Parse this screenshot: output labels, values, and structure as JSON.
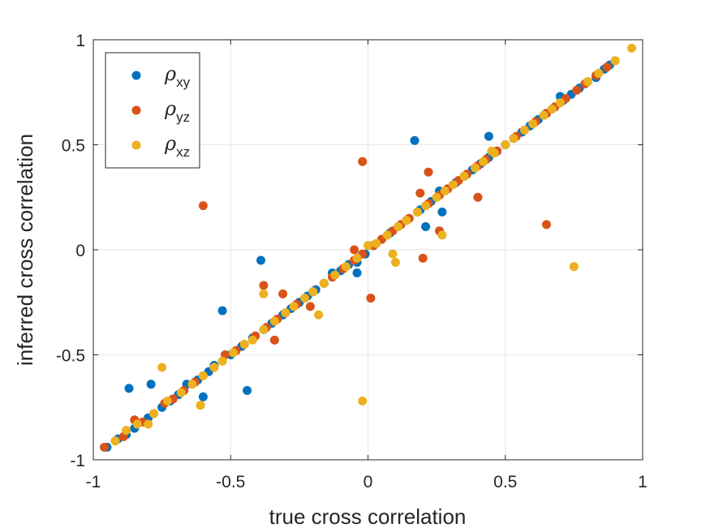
{
  "chart_data": {
    "type": "scatter",
    "title": "",
    "xlabel": "true cross correlation",
    "ylabel": "inferred cross correlation",
    "xlim": [
      -1,
      1
    ],
    "ylim": [
      -1,
      1
    ],
    "xticks": [
      "-1",
      "-0.5",
      "0",
      "0.5",
      "1"
    ],
    "yticks": [
      "-1",
      "-0.5",
      "0",
      "0.5",
      "1"
    ],
    "grid": true,
    "legend_position": "top-left",
    "series": [
      {
        "name": "ρxy",
        "symbol": "ρ",
        "subscript": "xy",
        "color": "#0072BD",
        "points": [
          [
            -0.95,
            -0.94
          ],
          [
            -0.91,
            -0.9
          ],
          [
            -0.88,
            -0.88
          ],
          [
            -0.87,
            -0.66
          ],
          [
            -0.85,
            -0.85
          ],
          [
            -0.8,
            -0.8
          ],
          [
            -0.79,
            -0.64
          ],
          [
            -0.75,
            -0.75
          ],
          [
            -0.72,
            -0.72
          ],
          [
            -0.69,
            -0.69
          ],
          [
            -0.66,
            -0.64
          ],
          [
            -0.62,
            -0.62
          ],
          [
            -0.6,
            -0.7
          ],
          [
            -0.58,
            -0.58
          ],
          [
            -0.56,
            -0.55
          ],
          [
            -0.53,
            -0.29
          ],
          [
            -0.5,
            -0.5
          ],
          [
            -0.46,
            -0.46
          ],
          [
            -0.44,
            -0.67
          ],
          [
            -0.42,
            -0.42
          ],
          [
            -0.39,
            -0.05
          ],
          [
            -0.38,
            -0.38
          ],
          [
            -0.35,
            -0.35
          ],
          [
            -0.31,
            -0.31
          ],
          [
            -0.28,
            -0.28
          ],
          [
            -0.25,
            -0.25
          ],
          [
            -0.22,
            -0.22
          ],
          [
            -0.19,
            -0.19
          ],
          [
            -0.16,
            -0.16
          ],
          [
            -0.13,
            -0.11
          ],
          [
            -0.1,
            -0.1
          ],
          [
            -0.07,
            -0.07
          ],
          [
            -0.04,
            -0.06
          ],
          [
            -0.04,
            -0.11
          ],
          [
            -0.01,
            -0.02
          ],
          [
            0.02,
            0.02
          ],
          [
            0.05,
            0.05
          ],
          [
            0.08,
            0.08
          ],
          [
            0.11,
            0.11
          ],
          [
            0.14,
            0.14
          ],
          [
            0.17,
            0.52
          ],
          [
            0.19,
            0.19
          ],
          [
            0.21,
            0.11
          ],
          [
            0.23,
            0.23
          ],
          [
            0.26,
            0.28
          ],
          [
            0.27,
            0.18
          ],
          [
            0.29,
            0.29
          ],
          [
            0.32,
            0.32
          ],
          [
            0.35,
            0.35
          ],
          [
            0.38,
            0.38
          ],
          [
            0.41,
            0.41
          ],
          [
            0.44,
            0.54
          ],
          [
            0.44,
            0.44
          ],
          [
            0.47,
            0.47
          ],
          [
            0.5,
            0.5
          ],
          [
            0.53,
            0.53
          ],
          [
            0.56,
            0.56
          ],
          [
            0.59,
            0.59
          ],
          [
            0.62,
            0.62
          ],
          [
            0.65,
            0.65
          ],
          [
            0.68,
            0.68
          ],
          [
            0.71,
            0.71
          ],
          [
            0.7,
            0.73
          ],
          [
            0.74,
            0.74
          ],
          [
            0.77,
            0.77
          ],
          [
            0.8,
            0.8
          ],
          [
            0.83,
            0.82
          ],
          [
            0.86,
            0.86
          ],
          [
            0.88,
            0.88
          ]
        ]
      },
      {
        "name": "ρyz",
        "symbol": "ρ",
        "subscript": "yz",
        "color": "#D95319",
        "points": [
          [
            -0.96,
            -0.94
          ],
          [
            -0.92,
            -0.91
          ],
          [
            -0.89,
            -0.89
          ],
          [
            -0.85,
            -0.81
          ],
          [
            -0.82,
            -0.82
          ],
          [
            -0.78,
            -0.78
          ],
          [
            -0.74,
            -0.73
          ],
          [
            -0.71,
            -0.71
          ],
          [
            -0.67,
            -0.67
          ],
          [
            -0.63,
            -0.63
          ],
          [
            -0.6,
            0.21
          ],
          [
            -0.6,
            -0.6
          ],
          [
            -0.56,
            -0.56
          ],
          [
            -0.52,
            -0.5
          ],
          [
            -0.48,
            -0.48
          ],
          [
            -0.45,
            -0.45
          ],
          [
            -0.41,
            -0.41
          ],
          [
            -0.38,
            -0.17
          ],
          [
            -0.37,
            -0.37
          ],
          [
            -0.34,
            -0.43
          ],
          [
            -0.33,
            -0.33
          ],
          [
            -0.31,
            -0.21
          ],
          [
            -0.3,
            -0.3
          ],
          [
            -0.26,
            -0.26
          ],
          [
            -0.23,
            -0.23
          ],
          [
            -0.21,
            -0.27
          ],
          [
            -0.2,
            -0.2
          ],
          [
            -0.16,
            -0.16
          ],
          [
            -0.13,
            -0.13
          ],
          [
            -0.09,
            -0.09
          ],
          [
            -0.05,
            0.0
          ],
          [
            -0.05,
            -0.05
          ],
          [
            -0.02,
            0.42
          ],
          [
            -0.02,
            -0.02
          ],
          [
            0.01,
            -0.23
          ],
          [
            0.02,
            0.02
          ],
          [
            0.05,
            0.05
          ],
          [
            0.09,
            0.09
          ],
          [
            0.12,
            0.12
          ],
          [
            0.15,
            0.15
          ],
          [
            0.18,
            0.18
          ],
          [
            0.19,
            0.27
          ],
          [
            0.2,
            -0.04
          ],
          [
            0.22,
            0.37
          ],
          [
            0.22,
            0.22
          ],
          [
            0.26,
            0.26
          ],
          [
            0.26,
            0.09
          ],
          [
            0.29,
            0.29
          ],
          [
            0.33,
            0.33
          ],
          [
            0.36,
            0.36
          ],
          [
            0.4,
            0.25
          ],
          [
            0.4,
            0.4
          ],
          [
            0.43,
            0.43
          ],
          [
            0.47,
            0.47
          ],
          [
            0.5,
            0.5
          ],
          [
            0.54,
            0.54
          ],
          [
            0.57,
            0.57
          ],
          [
            0.61,
            0.61
          ],
          [
            0.65,
            0.12
          ],
          [
            0.65,
            0.65
          ],
          [
            0.68,
            0.68
          ],
          [
            0.72,
            0.72
          ],
          [
            0.76,
            0.76
          ],
          [
            0.79,
            0.79
          ],
          [
            0.83,
            0.83
          ],
          [
            0.87,
            0.87
          ],
          [
            0.9,
            0.9
          ]
        ]
      },
      {
        "name": "ρxz",
        "symbol": "ρ",
        "subscript": "xz",
        "color": "#EDB120",
        "points": [
          [
            -0.92,
            -0.91
          ],
          [
            -0.88,
            -0.86
          ],
          [
            -0.84,
            -0.83
          ],
          [
            -0.8,
            -0.83
          ],
          [
            -0.78,
            -0.78
          ],
          [
            -0.75,
            -0.56
          ],
          [
            -0.73,
            -0.72
          ],
          [
            -0.68,
            -0.68
          ],
          [
            -0.64,
            -0.64
          ],
          [
            -0.61,
            -0.74
          ],
          [
            -0.6,
            -0.6
          ],
          [
            -0.56,
            -0.56
          ],
          [
            -0.53,
            -0.53
          ],
          [
            -0.49,
            -0.49
          ],
          [
            -0.45,
            -0.45
          ],
          [
            -0.42,
            -0.43
          ],
          [
            -0.38,
            -0.21
          ],
          [
            -0.38,
            -0.38
          ],
          [
            -0.34,
            -0.34
          ],
          [
            -0.3,
            -0.3
          ],
          [
            -0.27,
            -0.27
          ],
          [
            -0.23,
            -0.23
          ],
          [
            -0.2,
            -0.2
          ],
          [
            -0.18,
            -0.31
          ],
          [
            -0.16,
            -0.16
          ],
          [
            -0.12,
            -0.12
          ],
          [
            -0.08,
            -0.08
          ],
          [
            -0.04,
            -0.04
          ],
          [
            -0.02,
            -0.72
          ],
          [
            0.0,
            0.02
          ],
          [
            0.03,
            0.03
          ],
          [
            0.07,
            0.07
          ],
          [
            0.09,
            -0.02
          ],
          [
            0.1,
            -0.06
          ],
          [
            0.11,
            0.11
          ],
          [
            0.14,
            0.14
          ],
          [
            0.18,
            0.18
          ],
          [
            0.21,
            0.21
          ],
          [
            0.25,
            0.25
          ],
          [
            0.27,
            0.07
          ],
          [
            0.28,
            0.28
          ],
          [
            0.31,
            0.31
          ],
          [
            0.35,
            0.35
          ],
          [
            0.39,
            0.39
          ],
          [
            0.42,
            0.42
          ],
          [
            0.45,
            0.47
          ],
          [
            0.46,
            0.46
          ],
          [
            0.5,
            0.5
          ],
          [
            0.53,
            0.53
          ],
          [
            0.57,
            0.57
          ],
          [
            0.6,
            0.6
          ],
          [
            0.64,
            0.64
          ],
          [
            0.67,
            0.67
          ],
          [
            0.7,
            0.7
          ],
          [
            0.75,
            -0.08
          ],
          [
            0.8,
            0.8
          ],
          [
            0.84,
            0.84
          ],
          [
            0.9,
            0.9
          ],
          [
            0.96,
            0.96
          ]
        ]
      }
    ]
  }
}
